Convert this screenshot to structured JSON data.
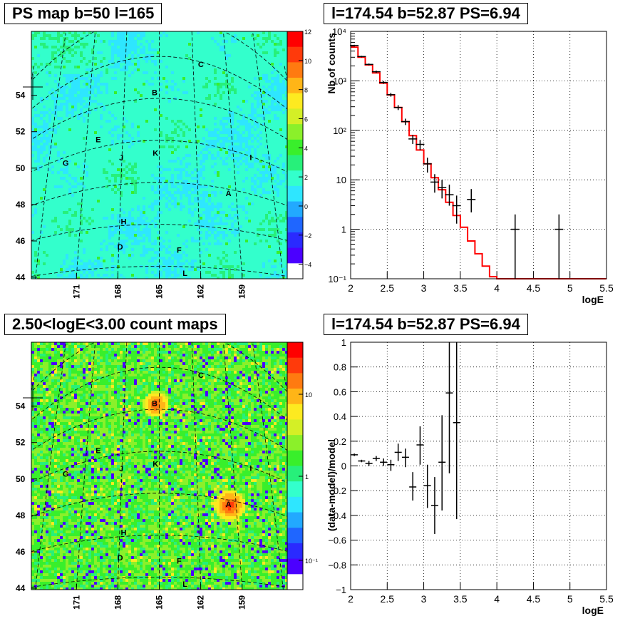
{
  "titles": {
    "ps_map": "PS map b=50 l=165",
    "spectrum": "l=174.54 b=52.87 PS=6.94",
    "count_map": "2.50<logE<3.00 count maps",
    "residual": "l=174.54 b=52.87 PS=6.94"
  },
  "chart_data": [
    {
      "id": "ps_map",
      "type": "heatmap",
      "title": "PS map b=50 l=165",
      "xlabel": "",
      "ylabel": "",
      "x_ticks": [
        "171",
        "168",
        "165",
        "162",
        "159"
      ],
      "y_ticks": [
        "54",
        "52",
        "50",
        "48",
        "46",
        "44"
      ],
      "z_ticks": [
        "12",
        "10",
        "8",
        "6",
        "4",
        "2",
        "0",
        "−2",
        "−4"
      ],
      "zlim": [
        -5,
        12
      ],
      "colormap": "rainbow",
      "grid": true,
      "sources": [
        {
          "label": "A",
          "l": 159.6,
          "b": 47.8
        },
        {
          "label": "B",
          "l": 165.4,
          "b": 52.3
        },
        {
          "label": "C",
          "l": 161.3,
          "b": 53.9
        },
        {
          "label": "D",
          "l": 167.9,
          "b": 45.0
        },
        {
          "label": "E",
          "l": 170.0,
          "b": 50.4
        },
        {
          "label": "F",
          "l": 163.5,
          "b": 44.8
        },
        {
          "label": "G",
          "l": 172.6,
          "b": 49.7
        },
        {
          "label": "H",
          "l": 167.7,
          "b": 46.2
        },
        {
          "label": "I",
          "l": 157.4,
          "b": 50.0
        },
        {
          "label": "J",
          "l": 168.0,
          "b": 49.3
        },
        {
          "label": "K",
          "l": 165.3,
          "b": 49.4
        },
        {
          "label": "L",
          "l": 163.1,
          "b": 43.7
        }
      ],
      "cursor": {
        "l": 174.54,
        "b": 52.87
      }
    },
    {
      "id": "spectrum",
      "type": "line",
      "title": "l=174.54 b=52.87 PS=6.94",
      "xlabel": "logE",
      "ylabel": "Nb of counts",
      "xlim": [
        2,
        5.5
      ],
      "ylim": [
        0.1,
        10000
      ],
      "yscale": "log",
      "x_ticks": [
        "2",
        "2.5",
        "3",
        "3.5",
        "4",
        "4.5",
        "5",
        "5.5"
      ],
      "y_ticks": [
        "10⁻¹",
        "1",
        "10",
        "10²",
        "10³",
        "10⁴"
      ],
      "grid": true,
      "series": [
        {
          "kind": "model",
          "color": "#ff0000",
          "bin_width": 0.1,
          "x": [
            2.05,
            2.15,
            2.25,
            2.35,
            2.45,
            2.55,
            2.65,
            2.75,
            2.85,
            2.95,
            3.05,
            3.15,
            3.25,
            3.35,
            3.45,
            3.55,
            3.65,
            3.75,
            3.85,
            3.95,
            4.05,
            4.15,
            4.25,
            4.35,
            4.45,
            4.55,
            4.65,
            4.75,
            4.85,
            4.95,
            5.05,
            5.15,
            5.25,
            5.35,
            5.45
          ],
          "values": [
            4800,
            3000,
            2100,
            1450,
            900,
            520,
            290,
            150,
            78,
            40,
            21,
            11,
            6.3,
            3.5,
            1.9,
            1.1,
            0.58,
            0.32,
            0.18,
            0.11,
            0.1,
            0.1,
            0.1,
            0.1,
            0.1,
            0.1,
            0.1,
            0.1,
            0.1,
            0.1,
            0.1,
            0.1,
            0.1,
            0.1,
            0.1
          ]
        },
        {
          "kind": "data",
          "color": "#000000",
          "points": [
            {
              "x": 2.05,
              "y": 5200,
              "lo": 5050,
              "hi": 5350
            },
            {
              "x": 2.15,
              "y": 3100,
              "lo": 2990,
              "hi": 3210
            },
            {
              "x": 2.25,
              "y": 2150,
              "lo": 2060,
              "hi": 2240
            },
            {
              "x": 2.35,
              "y": 1530,
              "lo": 1450,
              "hi": 1610
            },
            {
              "x": 2.45,
              "y": 930,
              "lo": 870,
              "hi": 990
            },
            {
              "x": 2.55,
              "y": 525,
              "lo": 480,
              "hi": 570
            },
            {
              "x": 2.65,
              "y": 290,
              "lo": 257,
              "hi": 323
            },
            {
              "x": 2.75,
              "y": 150,
              "lo": 128,
              "hi": 172
            },
            {
              "x": 2.85,
              "y": 67,
              "lo": 53,
              "hi": 81
            },
            {
              "x": 2.95,
              "y": 52,
              "lo": 40,
              "hi": 64
            },
            {
              "x": 3.05,
              "y": 21,
              "lo": 14,
              "hi": 28
            },
            {
              "x": 3.15,
              "y": 9,
              "lo": 5.5,
              "hi": 13
            },
            {
              "x": 3.25,
              "y": 7,
              "lo": 4.2,
              "hi": 10
            },
            {
              "x": 3.35,
              "y": 5,
              "lo": 3,
              "hi": 8
            },
            {
              "x": 3.45,
              "y": 3,
              "lo": 1.3,
              "hi": 4.8
            },
            {
              "x": 3.65,
              "y": 4,
              "lo": 2.2,
              "hi": 6.5
            },
            {
              "x": 4.25,
              "y": 1,
              "lo": 0.1,
              "hi": 2
            },
            {
              "x": 4.85,
              "y": 1,
              "lo": 0.1,
              "hi": 2
            }
          ]
        }
      ]
    },
    {
      "id": "count_map",
      "type": "heatmap",
      "title": "2.50<logE<3.00 count maps",
      "xlabel": "",
      "ylabel": "",
      "x_ticks": [
        "171",
        "168",
        "165",
        "162",
        "159"
      ],
      "y_ticks": [
        "54",
        "52",
        "50",
        "48",
        "46",
        "44"
      ],
      "z_ticks": [
        "10",
        "1",
        "10⁻¹"
      ],
      "zscale": "log",
      "colormap": "rainbow",
      "grid": true,
      "sources": [
        {
          "label": "A",
          "l": 159.6,
          "b": 47.8
        },
        {
          "label": "B",
          "l": 165.4,
          "b": 52.3
        },
        {
          "label": "C",
          "l": 161.3,
          "b": 53.9
        },
        {
          "label": "D",
          "l": 167.9,
          "b": 45.0
        },
        {
          "label": "E",
          "l": 170.0,
          "b": 50.4
        },
        {
          "label": "F",
          "l": 163.5,
          "b": 44.8
        },
        {
          "label": "G",
          "l": 172.6,
          "b": 49.7
        },
        {
          "label": "H",
          "l": 167.7,
          "b": 46.2
        },
        {
          "label": "I",
          "l": 157.4,
          "b": 50.0
        },
        {
          "label": "J",
          "l": 168.0,
          "b": 49.3
        },
        {
          "label": "K",
          "l": 165.3,
          "b": 49.4
        },
        {
          "label": "L",
          "l": 163.1,
          "b": 43.7
        }
      ],
      "cursor": {
        "l": 174.54,
        "b": 52.87
      }
    },
    {
      "id": "residual",
      "type": "scatter",
      "title": "l=174.54 b=52.87 PS=6.94",
      "xlabel": "logE",
      "ylabel": "(data-model)/model",
      "xlim": [
        2,
        5.5
      ],
      "ylim": [
        -1,
        1
      ],
      "x_ticks": [
        "2",
        "2.5",
        "3",
        "3.5",
        "4",
        "4.5",
        "5",
        "5.5"
      ],
      "y_ticks": [
        "1",
        "0.8",
        "0.6",
        "0.4",
        "0.2",
        "0",
        "−0.2",
        "−0.4",
        "−0.6",
        "−0.8",
        "−1"
      ],
      "grid": true,
      "series": [
        {
          "kind": "data",
          "color": "#000000",
          "points": [
            {
              "x": 2.05,
              "y": 0.09,
              "lo": 0.08,
              "hi": 0.1
            },
            {
              "x": 2.15,
              "y": 0.04,
              "lo": 0.03,
              "hi": 0.05
            },
            {
              "x": 2.25,
              "y": 0.02,
              "lo": 0.0,
              "hi": 0.04
            },
            {
              "x": 2.35,
              "y": 0.06,
              "lo": 0.04,
              "hi": 0.08
            },
            {
              "x": 2.45,
              "y": 0.03,
              "lo": 0.0,
              "hi": 0.06
            },
            {
              "x": 2.55,
              "y": 0.01,
              "lo": -0.04,
              "hi": 0.05
            },
            {
              "x": 2.65,
              "y": 0.11,
              "lo": 0.04,
              "hi": 0.18
            },
            {
              "x": 2.75,
              "y": 0.07,
              "lo": -0.01,
              "hi": 0.14
            },
            {
              "x": 2.85,
              "y": -0.17,
              "lo": -0.28,
              "hi": -0.05
            },
            {
              "x": 2.95,
              "y": 0.17,
              "lo": 0.01,
              "hi": 0.32
            },
            {
              "x": 3.05,
              "y": -0.16,
              "lo": -0.34,
              "hi": 0.01
            },
            {
              "x": 3.15,
              "y": -0.32,
              "lo": -0.55,
              "hi": -0.09
            },
            {
              "x": 3.25,
              "y": 0.03,
              "lo": -0.36,
              "hi": 0.41
            },
            {
              "x": 3.35,
              "y": 0.59,
              "lo": -0.06,
              "hi": 1.0
            },
            {
              "x": 3.45,
              "y": 0.35,
              "lo": -0.43,
              "hi": 1.0
            }
          ]
        }
      ]
    }
  ]
}
